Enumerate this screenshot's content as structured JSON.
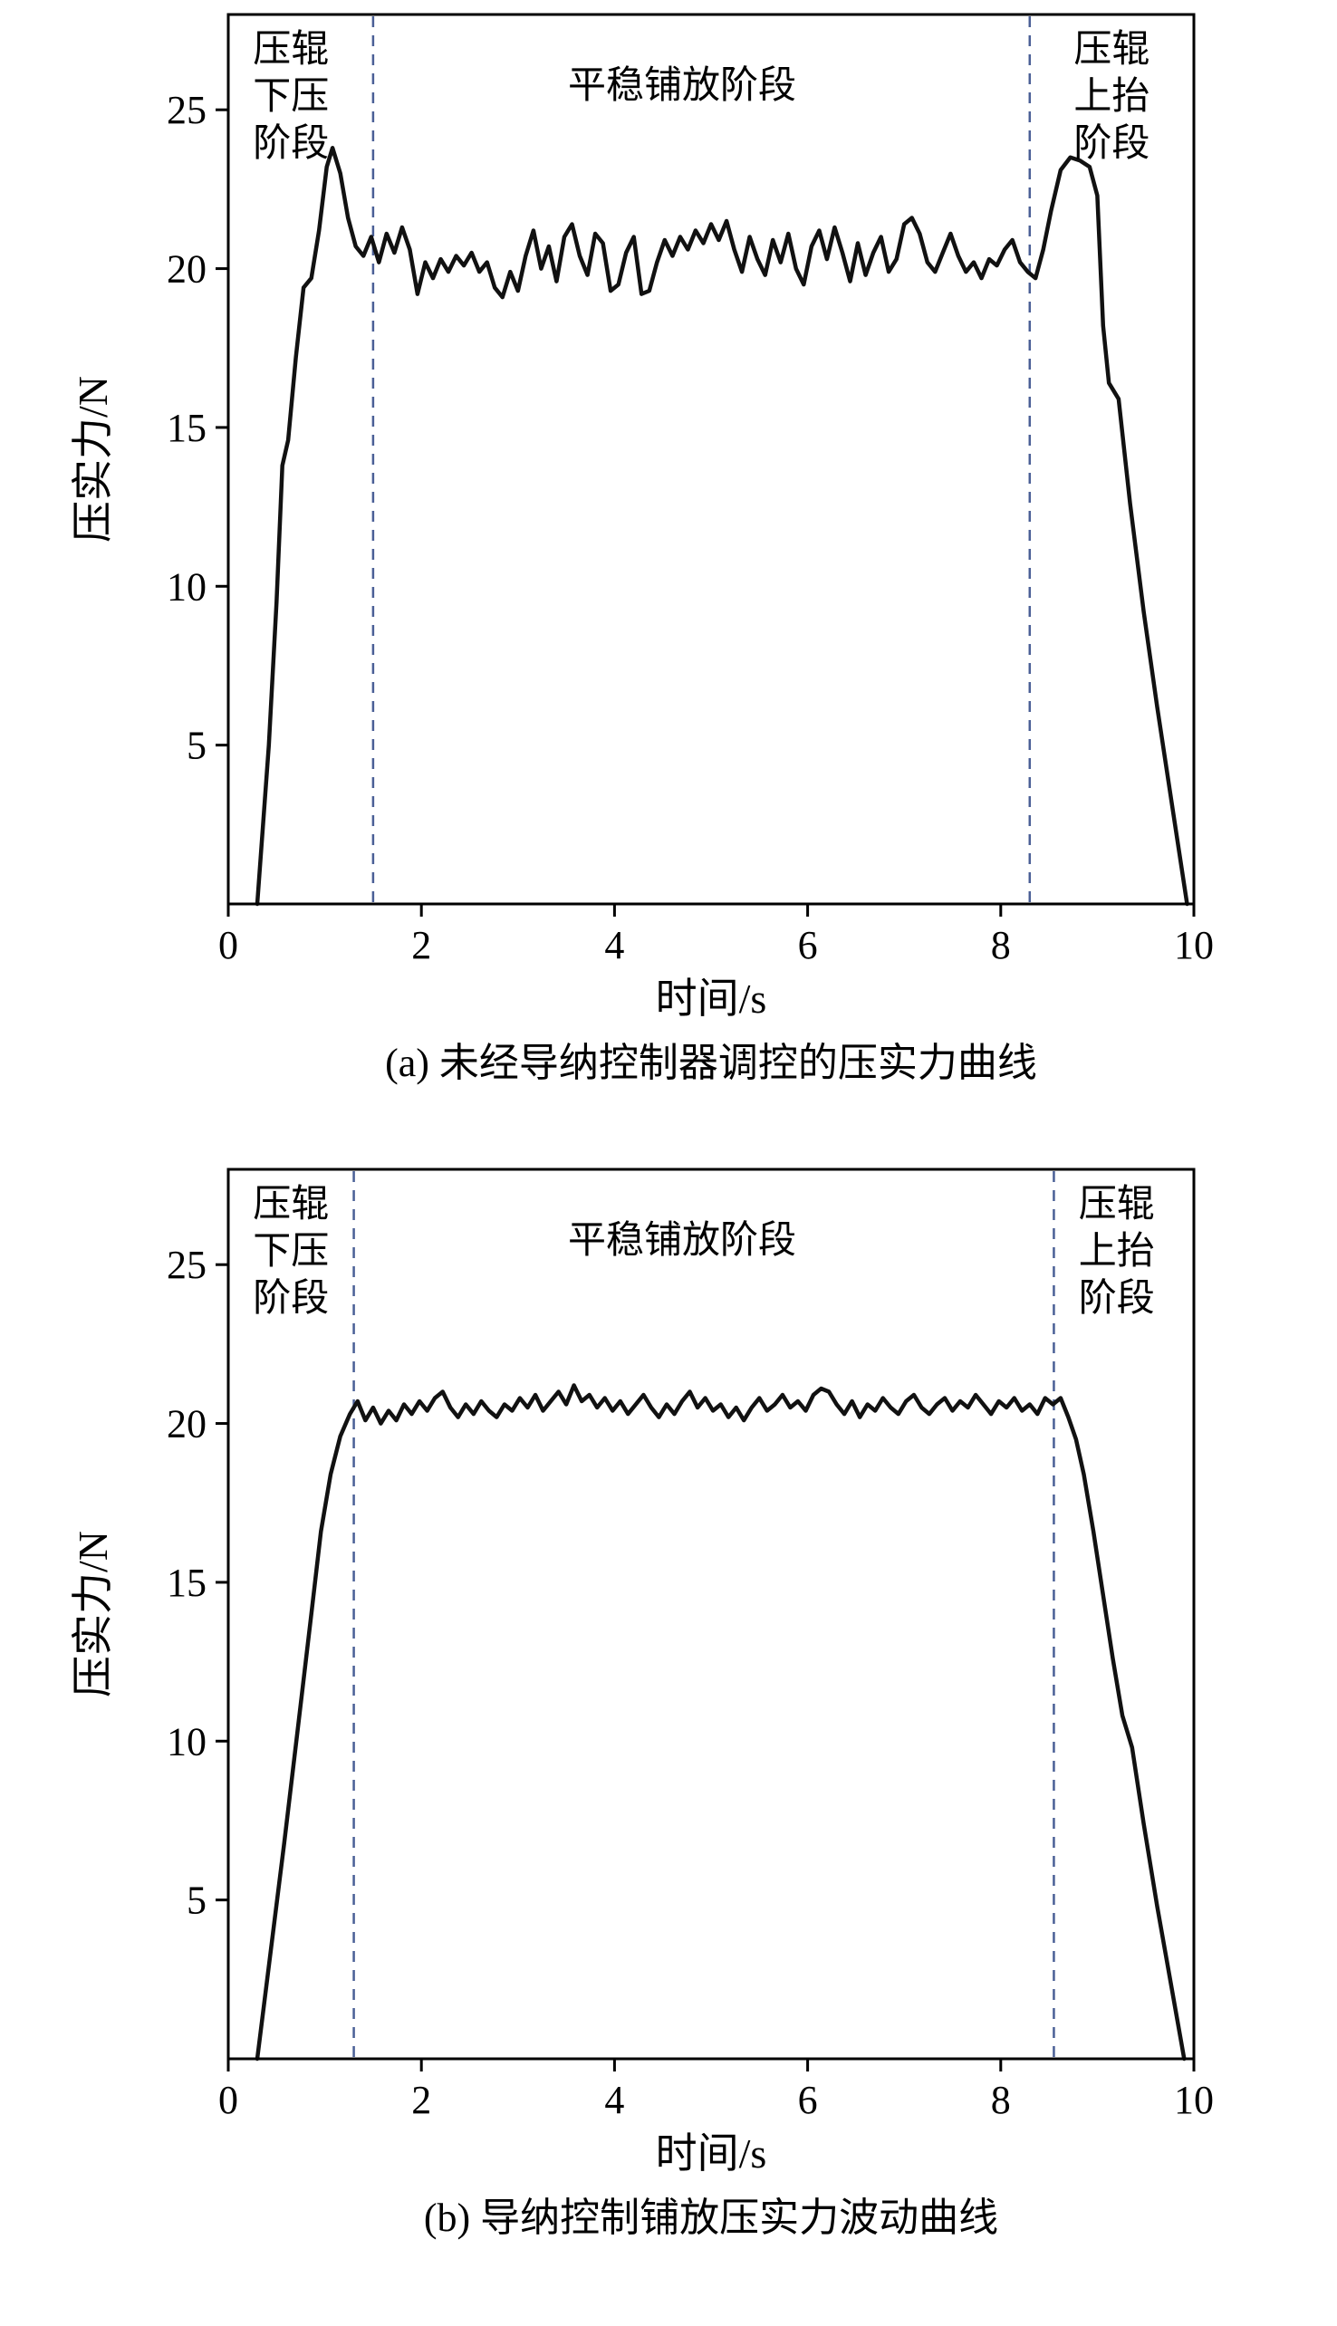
{
  "page": {
    "background": "#ffffff"
  },
  "chart_data": [
    {
      "type": "line",
      "caption": "(a) 未经导纳控制器调控的压实力曲线",
      "xlabel": "时间/s",
      "ylabel": "压实力/N",
      "xlim": [
        0,
        10
      ],
      "ylim": [
        0,
        28
      ],
      "xticks": [
        0,
        2,
        4,
        6,
        8,
        10
      ],
      "yticks": [
        5,
        10,
        15,
        20,
        25
      ],
      "grid": false,
      "legend": "none",
      "line_color": "#111111",
      "dash_color": "#4a5f96",
      "dashed_lines_x": [
        1.5,
        8.3
      ],
      "annotations": [
        {
          "name": "stage-press-down",
          "lines": [
            "压辊",
            "下压",
            "阶段"
          ],
          "x": 0.65
        },
        {
          "name": "stage-stable",
          "lines": [
            "平稳铺放阶段"
          ],
          "x": 4.7
        },
        {
          "name": "stage-lift-up",
          "lines": [
            "压辊",
            "上抬",
            "阶段"
          ],
          "x": 9.15
        }
      ],
      "series": [
        {
          "name": "压实力",
          "points": [
            [
              0.3,
              0
            ],
            [
              0.42,
              5.0
            ],
            [
              0.5,
              9.5
            ],
            [
              0.56,
              13.8
            ],
            [
              0.62,
              14.6
            ],
            [
              0.7,
              17.2
            ],
            [
              0.78,
              19.4
            ],
            [
              0.86,
              19.7
            ],
            [
              0.94,
              21.2
            ],
            [
              1.02,
              23.2
            ],
            [
              1.08,
              23.8
            ],
            [
              1.16,
              23.0
            ],
            [
              1.24,
              21.6
            ],
            [
              1.32,
              20.7
            ],
            [
              1.4,
              20.4
            ],
            [
              1.48,
              21.0
            ],
            [
              1.56,
              20.2
            ],
            [
              1.64,
              21.1
            ],
            [
              1.72,
              20.5
            ],
            [
              1.8,
              21.3
            ],
            [
              1.88,
              20.6
            ],
            [
              1.96,
              19.2
            ],
            [
              2.04,
              20.2
            ],
            [
              2.12,
              19.7
            ],
            [
              2.2,
              20.3
            ],
            [
              2.28,
              19.9
            ],
            [
              2.36,
              20.4
            ],
            [
              2.44,
              20.1
            ],
            [
              2.52,
              20.5
            ],
            [
              2.6,
              19.9
            ],
            [
              2.68,
              20.2
            ],
            [
              2.76,
              19.4
            ],
            [
              2.84,
              19.1
            ],
            [
              2.92,
              19.9
            ],
            [
              3.0,
              19.3
            ],
            [
              3.08,
              20.4
            ],
            [
              3.16,
              21.2
            ],
            [
              3.24,
              20.0
            ],
            [
              3.32,
              20.7
            ],
            [
              3.4,
              19.6
            ],
            [
              3.48,
              21.0
            ],
            [
              3.56,
              21.4
            ],
            [
              3.64,
              20.4
            ],
            [
              3.72,
              19.8
            ],
            [
              3.8,
              21.1
            ],
            [
              3.88,
              20.8
            ],
            [
              3.96,
              19.3
            ],
            [
              4.04,
              19.5
            ],
            [
              4.12,
              20.5
            ],
            [
              4.2,
              21.0
            ],
            [
              4.28,
              19.2
            ],
            [
              4.36,
              19.3
            ],
            [
              4.44,
              20.2
            ],
            [
              4.52,
              20.9
            ],
            [
              4.6,
              20.4
            ],
            [
              4.68,
              21.0
            ],
            [
              4.76,
              20.6
            ],
            [
              4.84,
              21.2
            ],
            [
              4.92,
              20.8
            ],
            [
              5.0,
              21.4
            ],
            [
              5.08,
              20.9
            ],
            [
              5.16,
              21.5
            ],
            [
              5.24,
              20.6
            ],
            [
              5.32,
              19.9
            ],
            [
              5.4,
              21.0
            ],
            [
              5.48,
              20.3
            ],
            [
              5.56,
              19.8
            ],
            [
              5.64,
              20.9
            ],
            [
              5.72,
              20.2
            ],
            [
              5.8,
              21.1
            ],
            [
              5.88,
              20.0
            ],
            [
              5.96,
              19.5
            ],
            [
              6.04,
              20.7
            ],
            [
              6.12,
              21.2
            ],
            [
              6.2,
              20.3
            ],
            [
              6.28,
              21.3
            ],
            [
              6.36,
              20.5
            ],
            [
              6.44,
              19.6
            ],
            [
              6.52,
              20.8
            ],
            [
              6.6,
              19.8
            ],
            [
              6.68,
              20.5
            ],
            [
              6.76,
              21.0
            ],
            [
              6.84,
              19.9
            ],
            [
              6.92,
              20.3
            ],
            [
              7.0,
              21.4
            ],
            [
              7.08,
              21.6
            ],
            [
              7.16,
              21.1
            ],
            [
              7.24,
              20.2
            ],
            [
              7.32,
              19.9
            ],
            [
              7.4,
              20.5
            ],
            [
              7.48,
              21.1
            ],
            [
              7.56,
              20.4
            ],
            [
              7.64,
              19.9
            ],
            [
              7.72,
              20.2
            ],
            [
              7.8,
              19.7
            ],
            [
              7.88,
              20.3
            ],
            [
              7.96,
              20.1
            ],
            [
              8.04,
              20.6
            ],
            [
              8.12,
              20.9
            ],
            [
              8.2,
              20.2
            ],
            [
              8.28,
              19.9
            ],
            [
              8.36,
              19.7
            ],
            [
              8.44,
              20.6
            ],
            [
              8.52,
              21.8
            ],
            [
              8.62,
              23.1
            ],
            [
              8.72,
              23.5
            ],
            [
              8.82,
              23.4
            ],
            [
              8.92,
              23.2
            ],
            [
              9.0,
              22.3
            ],
            [
              9.06,
              18.2
            ],
            [
              9.12,
              16.4
            ],
            [
              9.22,
              15.9
            ],
            [
              9.34,
              12.6
            ],
            [
              9.48,
              9.2
            ],
            [
              9.62,
              6.2
            ],
            [
              9.78,
              3.0
            ],
            [
              9.93,
              0
            ]
          ]
        }
      ]
    },
    {
      "type": "line",
      "caption": "(b) 导纳控制铺放压实力波动曲线",
      "xlabel": "时间/s",
      "ylabel": "压实力/N",
      "xlim": [
        0,
        10
      ],
      "ylim": [
        0,
        28
      ],
      "xticks": [
        0,
        2,
        4,
        6,
        8,
        10
      ],
      "yticks": [
        5,
        10,
        15,
        20,
        25
      ],
      "grid": false,
      "legend": "none",
      "line_color": "#111111",
      "dash_color": "#4a5f96",
      "dashed_lines_x": [
        1.3,
        8.55
      ],
      "annotations": [
        {
          "name": "stage-press-down",
          "lines": [
            "压辊",
            "下压",
            "阶段"
          ],
          "x": 0.65
        },
        {
          "name": "stage-stable",
          "lines": [
            "平稳铺放阶段"
          ],
          "x": 4.7
        },
        {
          "name": "stage-lift-up",
          "lines": [
            "压辊",
            "上抬",
            "阶段"
          ],
          "x": 9.2
        }
      ],
      "series": [
        {
          "name": "压实力",
          "points": [
            [
              0.3,
              0
            ],
            [
              0.44,
              3.4
            ],
            [
              0.58,
              6.8
            ],
            [
              0.72,
              10.4
            ],
            [
              0.86,
              14.0
            ],
            [
              0.96,
              16.6
            ],
            [
              1.06,
              18.4
            ],
            [
              1.16,
              19.6
            ],
            [
              1.26,
              20.3
            ],
            [
              1.34,
              20.7
            ],
            [
              1.42,
              20.1
            ],
            [
              1.5,
              20.5
            ],
            [
              1.58,
              20.0
            ],
            [
              1.66,
              20.4
            ],
            [
              1.74,
              20.1
            ],
            [
              1.82,
              20.6
            ],
            [
              1.9,
              20.3
            ],
            [
              1.98,
              20.7
            ],
            [
              2.06,
              20.4
            ],
            [
              2.14,
              20.8
            ],
            [
              2.22,
              21.0
            ],
            [
              2.3,
              20.5
            ],
            [
              2.38,
              20.2
            ],
            [
              2.46,
              20.6
            ],
            [
              2.54,
              20.3
            ],
            [
              2.62,
              20.7
            ],
            [
              2.7,
              20.4
            ],
            [
              2.78,
              20.2
            ],
            [
              2.86,
              20.6
            ],
            [
              2.94,
              20.4
            ],
            [
              3.02,
              20.8
            ],
            [
              3.1,
              20.5
            ],
            [
              3.18,
              20.9
            ],
            [
              3.26,
              20.4
            ],
            [
              3.34,
              20.7
            ],
            [
              3.42,
              21.0
            ],
            [
              3.5,
              20.6
            ],
            [
              3.58,
              21.2
            ],
            [
              3.66,
              20.7
            ],
            [
              3.74,
              20.9
            ],
            [
              3.82,
              20.5
            ],
            [
              3.9,
              20.8
            ],
            [
              3.98,
              20.4
            ],
            [
              4.06,
              20.7
            ],
            [
              4.14,
              20.3
            ],
            [
              4.22,
              20.6
            ],
            [
              4.3,
              20.9
            ],
            [
              4.38,
              20.5
            ],
            [
              4.46,
              20.2
            ],
            [
              4.54,
              20.6
            ],
            [
              4.62,
              20.3
            ],
            [
              4.7,
              20.7
            ],
            [
              4.78,
              21.0
            ],
            [
              4.86,
              20.5
            ],
            [
              4.94,
              20.8
            ],
            [
              5.02,
              20.4
            ],
            [
              5.1,
              20.6
            ],
            [
              5.18,
              20.2
            ],
            [
              5.26,
              20.5
            ],
            [
              5.34,
              20.1
            ],
            [
              5.42,
              20.5
            ],
            [
              5.5,
              20.8
            ],
            [
              5.58,
              20.4
            ],
            [
              5.66,
              20.6
            ],
            [
              5.74,
              20.9
            ],
            [
              5.82,
              20.5
            ],
            [
              5.9,
              20.7
            ],
            [
              5.98,
              20.4
            ],
            [
              6.06,
              20.9
            ],
            [
              6.14,
              21.1
            ],
            [
              6.22,
              21.0
            ],
            [
              6.3,
              20.6
            ],
            [
              6.38,
              20.3
            ],
            [
              6.46,
              20.7
            ],
            [
              6.54,
              20.2
            ],
            [
              6.62,
              20.6
            ],
            [
              6.7,
              20.4
            ],
            [
              6.78,
              20.8
            ],
            [
              6.86,
              20.5
            ],
            [
              6.94,
              20.3
            ],
            [
              7.02,
              20.7
            ],
            [
              7.1,
              20.9
            ],
            [
              7.18,
              20.5
            ],
            [
              7.26,
              20.3
            ],
            [
              7.34,
              20.6
            ],
            [
              7.42,
              20.8
            ],
            [
              7.5,
              20.4
            ],
            [
              7.58,
              20.7
            ],
            [
              7.66,
              20.5
            ],
            [
              7.74,
              20.9
            ],
            [
              7.82,
              20.6
            ],
            [
              7.9,
              20.3
            ],
            [
              7.98,
              20.7
            ],
            [
              8.06,
              20.5
            ],
            [
              8.14,
              20.8
            ],
            [
              8.22,
              20.4
            ],
            [
              8.3,
              20.6
            ],
            [
              8.38,
              20.3
            ],
            [
              8.46,
              20.8
            ],
            [
              8.54,
              20.6
            ],
            [
              8.62,
              20.8
            ],
            [
              8.7,
              20.2
            ],
            [
              8.78,
              19.5
            ],
            [
              8.86,
              18.4
            ],
            [
              8.96,
              16.6
            ],
            [
              9.06,
              14.6
            ],
            [
              9.16,
              12.6
            ],
            [
              9.26,
              10.8
            ],
            [
              9.36,
              9.8
            ],
            [
              9.48,
              7.4
            ],
            [
              9.62,
              4.8
            ],
            [
              9.76,
              2.4
            ],
            [
              9.9,
              0
            ]
          ]
        }
      ]
    }
  ]
}
